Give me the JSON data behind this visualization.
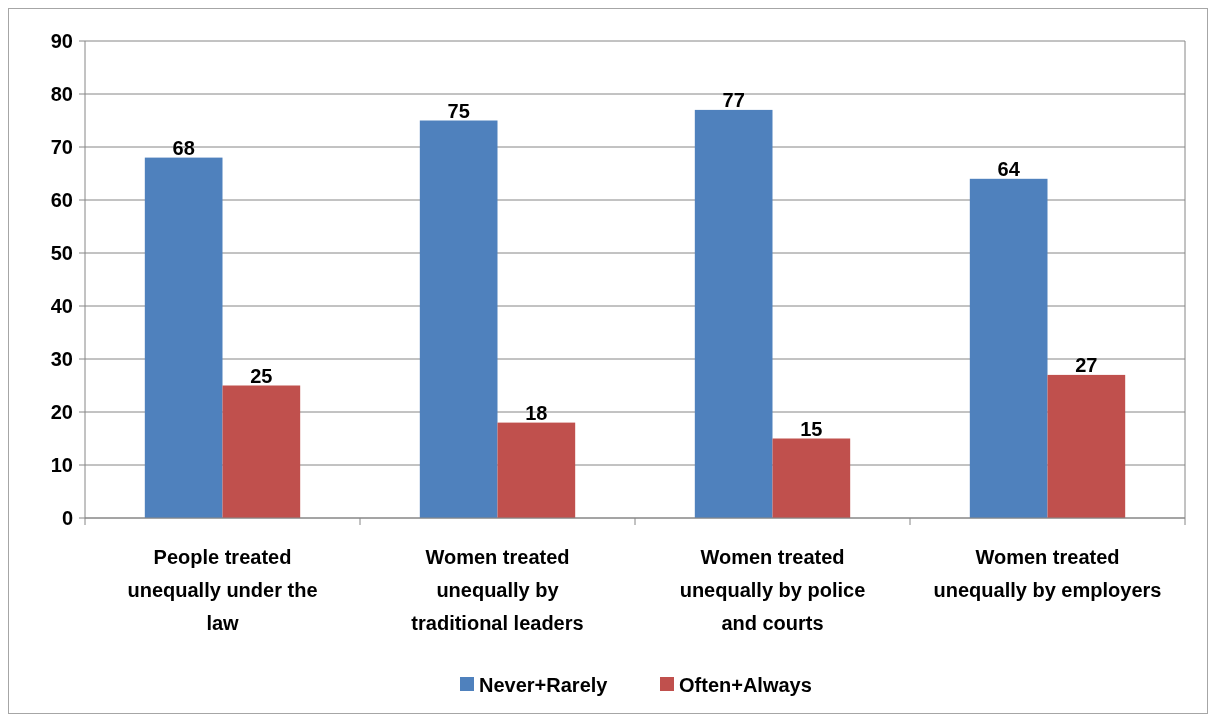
{
  "chart_data": {
    "type": "bar",
    "categories": [
      "People treated unequally under the law",
      "Women treated unequally by traditional leaders",
      "Women treated unequally by police and courts",
      "Women treated unequally by employers"
    ],
    "series": [
      {
        "name": "Never+Rarely",
        "color": "#4f81bd",
        "values": [
          68,
          75,
          77,
          64
        ]
      },
      {
        "name": "Often+Always",
        "color": "#c0504d",
        "values": [
          25,
          18,
          15,
          27
        ]
      }
    ],
    "ylim": [
      0,
      90
    ],
    "yticks": [
      0,
      10,
      20,
      30,
      40,
      50,
      60,
      70,
      80,
      90
    ],
    "grid": "y",
    "legend": "bottom",
    "data_labels": true
  }
}
